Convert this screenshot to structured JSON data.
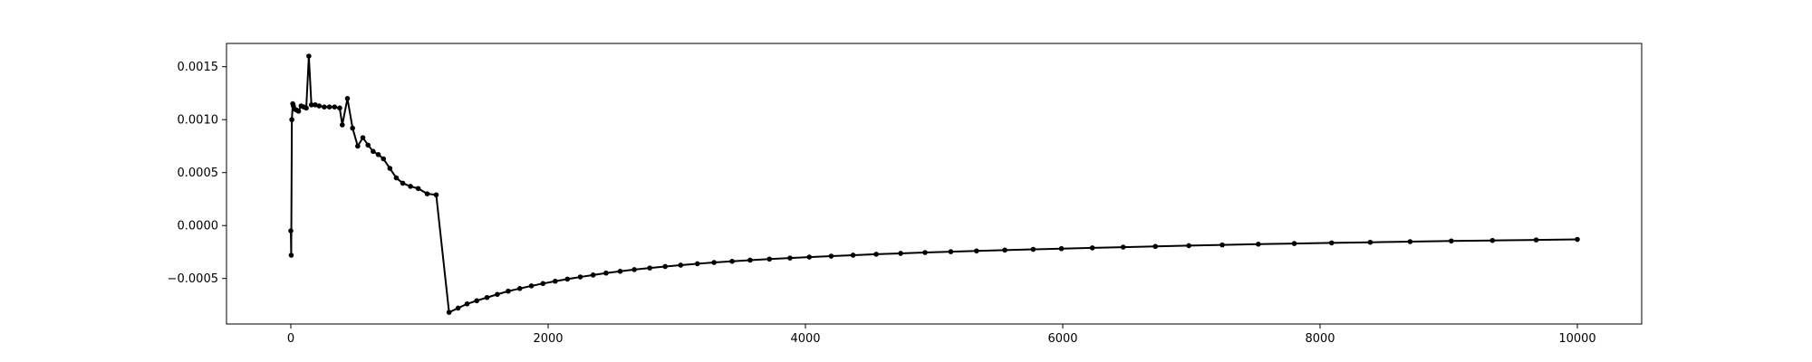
{
  "chart_data": {
    "type": "line",
    "title": "",
    "xlabel": "",
    "ylabel": "",
    "xlim": [
      -500,
      10500
    ],
    "ylim": [
      -0.00093,
      0.00172
    ],
    "grid": false,
    "x_ticks": [
      0,
      2000,
      4000,
      6000,
      8000,
      10000
    ],
    "x_tick_labels": [
      "0",
      "2000",
      "4000",
      "6000",
      "8000",
      "10000"
    ],
    "y_ticks": [
      -0.0005,
      0.0,
      0.0005,
      0.001,
      0.0015
    ],
    "y_tick_labels": [
      "−0.0005",
      "0.0000",
      "0.0005",
      "0.0010",
      "0.0015"
    ],
    "line_color": "#000000",
    "series": [
      {
        "marker": "dot",
        "x": [
          0,
          3,
          8,
          15,
          20,
          30,
          45,
          60,
          80,
          100,
          120,
          140,
          160,
          190,
          220,
          260,
          300,
          340,
          380,
          400,
          440,
          480,
          520,
          560,
          600,
          640,
          680,
          720,
          770,
          820,
          870,
          930,
          990,
          1060,
          1130,
          1230,
          1300,
          1370,
          1445,
          1525,
          1605,
          1690,
          1780,
          1870,
          1960,
          2055,
          2150,
          2250,
          2350,
          2450,
          2560,
          2670,
          2790,
          2910,
          3030,
          3160,
          3290,
          3430,
          3570,
          3720,
          3880,
          4030,
          4200,
          4370,
          4550,
          4740,
          4930,
          5130,
          5330,
          5550,
          5770,
          5990,
          6230,
          6470,
          6720,
          6980,
          7240,
          7520,
          7800,
          8090,
          8390,
          8700,
          9020,
          9340,
          9680,
          10000
        ],
        "y": [
          -5e-05,
          -0.00028,
          0.001,
          0.00115,
          0.00113,
          0.0011,
          0.00109,
          0.00108,
          0.00113,
          0.00112,
          0.00111,
          0.0016,
          0.00114,
          0.00114,
          0.00113,
          0.00112,
          0.00112,
          0.00112,
          0.00111,
          0.00095,
          0.0012,
          0.00092,
          0.00075,
          0.00083,
          0.00076,
          0.0007,
          0.00067,
          0.00063,
          0.00054,
          0.00045,
          0.0004,
          0.00037,
          0.00035,
          0.0003,
          0.00029,
          -0.00082,
          -0.00078,
          -0.00074,
          -0.00071,
          -0.00068,
          -0.00065,
          -0.00062,
          -0.000595,
          -0.00057,
          -0.000548,
          -0.000526,
          -0.000506,
          -0.000486,
          -0.000467,
          -0.000449,
          -0.000432,
          -0.000416,
          -0.000401,
          -0.000387,
          -0.000374,
          -0.000361,
          -0.000349,
          -0.000338,
          -0.000327,
          -0.000317,
          -0.000307,
          -0.000298,
          -0.000289,
          -0.00028,
          -0.000271,
          -0.000263,
          -0.000255,
          -0.000247,
          -0.00024,
          -0.000232,
          -0.000225,
          -0.000218,
          -0.000211,
          -0.000204,
          -0.000197,
          -0.00019,
          -0.000183,
          -0.000176,
          -0.00017,
          -0.000164,
          -0.000158,
          -0.000152,
          -0.000146,
          -0.000141,
          -0.000136,
          -0.000131
        ]
      }
    ]
  }
}
